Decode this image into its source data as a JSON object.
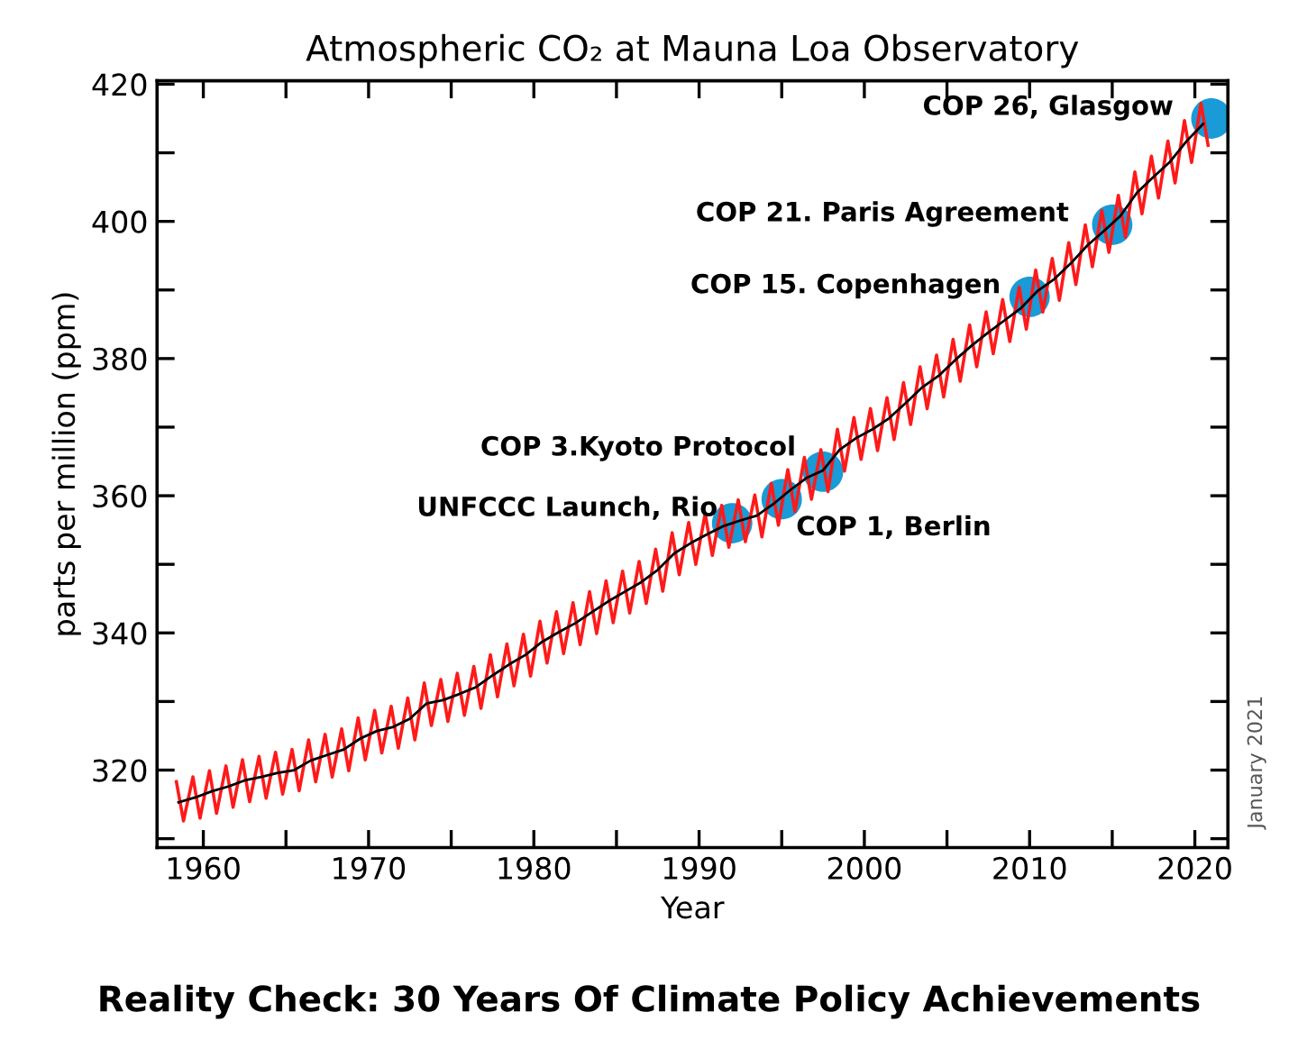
{
  "chart_data": {
    "type": "line",
    "title": "Atmospheric CO₂ at Mauna Loa Observatory",
    "xlabel": "Year",
    "ylabel": "parts per million (ppm)",
    "xlim": [
      1957.2,
      2022.0
    ],
    "ylim": [
      308.7,
      420.5
    ],
    "xticks": [
      1960,
      {
        "value": 1965,
        "label": null
      },
      1970,
      {
        "value": 1975,
        "label": null
      },
      1980,
      {
        "value": 1985,
        "label": null
      },
      1990,
      {
        "value": 1995,
        "label": null
      },
      2000,
      {
        "value": 2005,
        "label": null
      },
      2010,
      {
        "value": 2015,
        "label": null
      },
      2020
    ],
    "yticks": [
      {
        "value": 310,
        "label": null
      },
      320,
      {
        "value": 330,
        "label": null
      },
      340,
      {
        "value": 350,
        "label": null
      },
      360,
      {
        "value": 370,
        "label": null
      },
      380,
      {
        "value": 390,
        "label": null
      },
      400,
      {
        "value": 410,
        "label": null
      },
      420
    ],
    "grid": false,
    "legend": false,
    "marker": "none",
    "line_style": "solid",
    "series": [
      {
        "color": "#ff1a1a",
        "x": [
          1958.37,
          1958.8,
          1959.37,
          1959.8,
          1960.37,
          1960.8,
          1961.37,
          1961.8,
          1962.37,
          1962.8,
          1963.37,
          1963.8,
          1964.37,
          1964.8,
          1965.37,
          1965.8,
          1966.37,
          1966.8,
          1967.37,
          1967.8,
          1968.37,
          1968.8,
          1969.37,
          1969.8,
          1970.37,
          1970.8,
          1971.37,
          1971.8,
          1972.37,
          1972.8,
          1973.37,
          1973.8,
          1974.37,
          1974.8,
          1975.37,
          1975.8,
          1976.37,
          1976.8,
          1977.37,
          1977.8,
          1978.37,
          1978.8,
          1979.37,
          1979.8,
          1980.37,
          1980.8,
          1981.37,
          1981.8,
          1982.37,
          1982.8,
          1983.37,
          1983.8,
          1984.37,
          1984.8,
          1985.37,
          1985.8,
          1986.37,
          1986.8,
          1987.37,
          1987.8,
          1988.37,
          1988.8,
          1989.37,
          1989.8,
          1990.37,
          1990.8,
          1991.37,
          1991.8,
          1992.37,
          1992.8,
          1993.37,
          1993.8,
          1994.37,
          1994.8,
          1995.37,
          1995.8,
          1996.37,
          1996.8,
          1997.37,
          1997.8,
          1998.37,
          1998.8,
          1999.37,
          1999.8,
          2000.37,
          2000.8,
          2001.37,
          2001.8,
          2002.37,
          2002.8,
          2003.37,
          2003.8,
          2004.37,
          2004.8,
          2005.37,
          2005.8,
          2006.37,
          2006.8,
          2007.37,
          2007.8,
          2008.37,
          2008.8,
          2009.37,
          2009.8,
          2010.37,
          2010.8,
          2011.37,
          2011.8,
          2012.37,
          2012.8,
          2013.37,
          2013.8,
          2014.37,
          2014.8,
          2015.37,
          2015.8,
          2016.37,
          2016.8,
          2017.37,
          2017.8,
          2018.37,
          2018.8,
          2019.37,
          2019.8,
          2020.37,
          2020.8
        ],
        "values": [
          318.3,
          312.6,
          319.0,
          313.0,
          319.9,
          313.7,
          320.6,
          314.6,
          321.5,
          315.4,
          322.0,
          315.9,
          322.6,
          316.5,
          323.0,
          317.0,
          324.4,
          318.3,
          325.2,
          319.0,
          326.0,
          319.9,
          327.6,
          321.5,
          328.7,
          322.5,
          329.3,
          323.2,
          330.5,
          324.4,
          332.7,
          326.5,
          333.2,
          327.1,
          334.1,
          328.0,
          335.1,
          329.0,
          336.8,
          330.7,
          338.4,
          332.3,
          339.8,
          333.7,
          341.7,
          335.6,
          343.1,
          337.0,
          344.4,
          338.3,
          346.0,
          339.9,
          347.6,
          341.5,
          349.0,
          342.9,
          350.4,
          344.3,
          352.2,
          346.1,
          354.6,
          348.5,
          356.1,
          350.0,
          357.4,
          351.3,
          358.6,
          352.5,
          359.4,
          353.3,
          360.1,
          354.0,
          361.8,
          355.7,
          363.8,
          357.7,
          365.6,
          359.5,
          366.7,
          360.6,
          369.7,
          363.6,
          371.4,
          365.3,
          372.7,
          366.6,
          374.3,
          368.2,
          376.5,
          370.4,
          378.8,
          372.7,
          380.5,
          374.4,
          382.8,
          376.7,
          384.9,
          378.8,
          386.8,
          380.7,
          388.6,
          382.5,
          390.4,
          384.3,
          392.9,
          386.8,
          394.6,
          388.5,
          396.9,
          390.8,
          399.5,
          393.4,
          401.6,
          395.5,
          403.8,
          397.7,
          407.2,
          401.1,
          409.5,
          403.4,
          411.7,
          405.6,
          414.7,
          408.6,
          417.2,
          411.1
        ]
      },
      {
        "color": "#000000",
        "x": [
          1958.5,
          1959.5,
          1960.5,
          1961.5,
          1962.5,
          1963.5,
          1964.5,
          1965.5,
          1966.5,
          1967.5,
          1968.5,
          1969.5,
          1970.5,
          1971.5,
          1972.5,
          1973.5,
          1974.5,
          1975.5,
          1976.5,
          1977.5,
          1978.5,
          1979.5,
          1980.5,
          1981.5,
          1982.5,
          1983.5,
          1984.5,
          1985.5,
          1986.5,
          1987.5,
          1988.5,
          1989.5,
          1990.5,
          1991.5,
          1992.5,
          1993.5,
          1994.5,
          1995.5,
          1996.5,
          1997.5,
          1998.5,
          1999.5,
          2000.5,
          2001.5,
          2002.5,
          2003.5,
          2004.5,
          2005.5,
          2006.5,
          2007.5,
          2008.5,
          2009.5,
          2010.5,
          2011.5,
          2012.5,
          2013.5,
          2014.5,
          2015.5,
          2016.5,
          2017.5,
          2018.5,
          2019.5,
          2020.5
        ],
        "values": [
          315.3,
          316.0,
          316.9,
          317.6,
          318.5,
          319.0,
          319.6,
          320.0,
          321.4,
          322.2,
          323.0,
          324.6,
          325.7,
          326.3,
          327.5,
          329.7,
          330.2,
          331.1,
          332.1,
          333.8,
          335.4,
          336.8,
          338.7,
          340.1,
          341.4,
          343.0,
          344.6,
          346.0,
          347.4,
          349.2,
          351.6,
          353.1,
          354.4,
          355.6,
          356.4,
          357.1,
          358.8,
          360.8,
          362.6,
          363.7,
          366.7,
          368.4,
          369.7,
          371.3,
          373.5,
          375.8,
          377.5,
          379.8,
          381.9,
          383.8,
          385.6,
          387.4,
          389.9,
          391.6,
          393.9,
          396.5,
          398.6,
          400.8,
          404.2,
          406.5,
          408.7,
          411.7,
          414.2
        ]
      },
      {
        "type": "scatter",
        "color": "#1a9ad6",
        "marker": "circle",
        "x": [
          1992.0,
          1995.0,
          1997.5,
          2010.0,
          2015.0,
          2021.0
        ],
        "values": [
          356.0,
          359.5,
          363.5,
          389.0,
          399.5,
          415.0
        ]
      }
    ],
    "annotations": [
      {
        "text": "UNFCCC Launch, Rio",
        "x": 1992.0,
        "y": 356.0
      },
      {
        "text": "COP 1, Berlin",
        "x": 1995.0,
        "y": 359.5
      },
      {
        "text": "COP 3.Kyoto Protocol",
        "x": 1997.5,
        "y": 363.5
      },
      {
        "text": "COP 15. Copenhagen",
        "x": 2010.0,
        "y": 389.0
      },
      {
        "text": "COP 21. Paris Agreement",
        "x": 2015.0,
        "y": 399.5
      },
      {
        "text": "COP 26, Glasgow",
        "x": 2021.0,
        "y": 415.0
      },
      "January 2021",
      "Reality Check: 30 Years Of Climate Policy Achievements"
    ]
  }
}
